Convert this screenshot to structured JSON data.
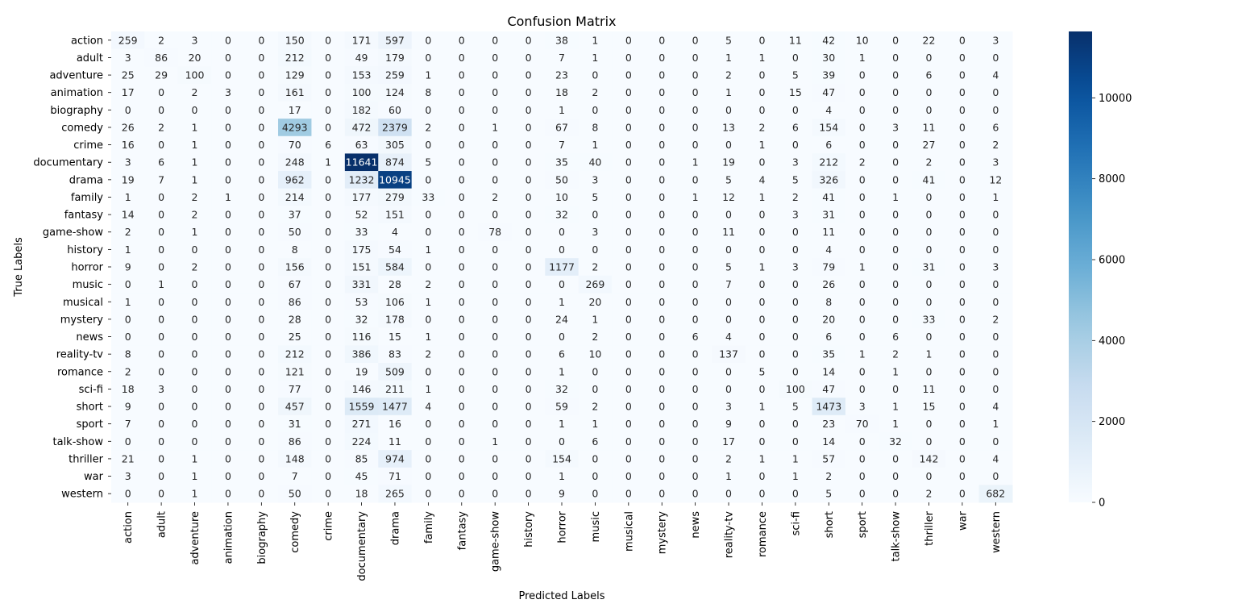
{
  "chart_data": {
    "type": "heatmap",
    "title": "Confusion Matrix",
    "xlabel": "Predicted Labels",
    "ylabel": "True Labels",
    "colormap": "Blues",
    "color_range": [
      0,
      11641
    ],
    "colorbar_ticks": [
      0,
      2000,
      4000,
      6000,
      8000,
      10000
    ],
    "labels": [
      "action",
      "adult",
      "adventure",
      "animation",
      "biography",
      "comedy",
      "crime",
      "documentary",
      "drama",
      "family",
      "fantasy",
      "game-show",
      "history",
      "horror",
      "music",
      "musical",
      "mystery",
      "news",
      "reality-tv",
      "romance",
      "sci-fi",
      "short",
      "sport",
      "talk-show",
      "thriller",
      "war",
      "western"
    ],
    "matrix": [
      [
        259,
        2,
        3,
        0,
        0,
        150,
        0,
        171,
        597,
        0,
        0,
        0,
        0,
        38,
        1,
        0,
        0,
        0,
        5,
        0,
        11,
        42,
        10,
        0,
        22,
        0,
        3
      ],
      [
        3,
        86,
        20,
        0,
        0,
        212,
        0,
        49,
        179,
        0,
        0,
        0,
        0,
        7,
        1,
        0,
        0,
        0,
        1,
        1,
        0,
        30,
        1,
        0,
        0,
        0,
        0
      ],
      [
        25,
        29,
        100,
        0,
        0,
        129,
        0,
        153,
        259,
        1,
        0,
        0,
        0,
        23,
        0,
        0,
        0,
        0,
        2,
        0,
        5,
        39,
        0,
        0,
        6,
        0,
        4
      ],
      [
        17,
        0,
        2,
        3,
        0,
        161,
        0,
        100,
        124,
        8,
        0,
        0,
        0,
        18,
        2,
        0,
        0,
        0,
        1,
        0,
        15,
        47,
        0,
        0,
        0,
        0,
        0
      ],
      [
        0,
        0,
        0,
        0,
        0,
        17,
        0,
        182,
        60,
        0,
        0,
        0,
        0,
        1,
        0,
        0,
        0,
        0,
        0,
        0,
        0,
        4,
        0,
        0,
        0,
        0,
        0
      ],
      [
        26,
        2,
        1,
        0,
        0,
        4293,
        0,
        472,
        2379,
        2,
        0,
        1,
        0,
        67,
        8,
        0,
        0,
        0,
        13,
        2,
        6,
        154,
        0,
        3,
        11,
        0,
        6
      ],
      [
        16,
        0,
        1,
        0,
        0,
        70,
        6,
        63,
        305,
        0,
        0,
        0,
        0,
        7,
        1,
        0,
        0,
        0,
        0,
        1,
        0,
        6,
        0,
        0,
        27,
        0,
        2
      ],
      [
        3,
        6,
        1,
        0,
        0,
        248,
        1,
        11641,
        874,
        5,
        0,
        0,
        0,
        35,
        40,
        0,
        0,
        1,
        19,
        0,
        3,
        212,
        2,
        0,
        2,
        0,
        3
      ],
      [
        19,
        7,
        1,
        0,
        0,
        962,
        0,
        1232,
        10945,
        0,
        0,
        0,
        0,
        50,
        3,
        0,
        0,
        0,
        5,
        4,
        5,
        326,
        0,
        0,
        41,
        0,
        12
      ],
      [
        1,
        0,
        2,
        1,
        0,
        214,
        0,
        177,
        279,
        33,
        0,
        2,
        0,
        10,
        5,
        0,
        0,
        1,
        12,
        1,
        2,
        41,
        0,
        1,
        0,
        0,
        1
      ],
      [
        14,
        0,
        2,
        0,
        0,
        37,
        0,
        52,
        151,
        0,
        0,
        0,
        0,
        32,
        0,
        0,
        0,
        0,
        0,
        0,
        3,
        31,
        0,
        0,
        0,
        0,
        0
      ],
      [
        2,
        0,
        1,
        0,
        0,
        50,
        0,
        33,
        4,
        0,
        0,
        78,
        0,
        0,
        3,
        0,
        0,
        0,
        11,
        0,
        0,
        11,
        0,
        0,
        0,
        0,
        0
      ],
      [
        1,
        0,
        0,
        0,
        0,
        8,
        0,
        175,
        54,
        1,
        0,
        0,
        0,
        0,
        0,
        0,
        0,
        0,
        0,
        0,
        0,
        4,
        0,
        0,
        0,
        0,
        0
      ],
      [
        9,
        0,
        2,
        0,
        0,
        156,
        0,
        151,
        584,
        0,
        0,
        0,
        0,
        1177,
        2,
        0,
        0,
        0,
        5,
        1,
        3,
        79,
        1,
        0,
        31,
        0,
        3
      ],
      [
        0,
        1,
        0,
        0,
        0,
        67,
        0,
        331,
        28,
        2,
        0,
        0,
        0,
        0,
        269,
        0,
        0,
        0,
        7,
        0,
        0,
        26,
        0,
        0,
        0,
        0,
        0
      ],
      [
        1,
        0,
        0,
        0,
        0,
        86,
        0,
        53,
        106,
        1,
        0,
        0,
        0,
        1,
        20,
        0,
        0,
        0,
        0,
        0,
        0,
        8,
        0,
        0,
        0,
        0,
        0
      ],
      [
        0,
        0,
        0,
        0,
        0,
        28,
        0,
        32,
        178,
        0,
        0,
        0,
        0,
        24,
        1,
        0,
        0,
        0,
        0,
        0,
        0,
        20,
        0,
        0,
        33,
        0,
        2
      ],
      [
        0,
        0,
        0,
        0,
        0,
        25,
        0,
        116,
        15,
        1,
        0,
        0,
        0,
        0,
        2,
        0,
        0,
        6,
        4,
        0,
        0,
        6,
        0,
        6,
        0,
        0,
        0
      ],
      [
        8,
        0,
        0,
        0,
        0,
        212,
        0,
        386,
        83,
        2,
        0,
        0,
        0,
        6,
        10,
        0,
        0,
        0,
        137,
        0,
        0,
        35,
        1,
        2,
        1,
        0,
        0
      ],
      [
        2,
        0,
        0,
        0,
        0,
        121,
        0,
        19,
        509,
        0,
        0,
        0,
        0,
        1,
        0,
        0,
        0,
        0,
        0,
        5,
        0,
        14,
        0,
        1,
        0,
        0,
        0
      ],
      [
        18,
        3,
        0,
        0,
        0,
        77,
        0,
        146,
        211,
        1,
        0,
        0,
        0,
        32,
        0,
        0,
        0,
        0,
        0,
        0,
        100,
        47,
        0,
        0,
        11,
        0,
        0
      ],
      [
        9,
        0,
        0,
        0,
        0,
        457,
        0,
        1559,
        1477,
        4,
        0,
        0,
        0,
        59,
        2,
        0,
        0,
        0,
        3,
        1,
        5,
        1473,
        3,
        1,
        15,
        0,
        4
      ],
      [
        7,
        0,
        0,
        0,
        0,
        31,
        0,
        271,
        16,
        0,
        0,
        0,
        0,
        1,
        1,
        0,
        0,
        0,
        9,
        0,
        0,
        23,
        70,
        1,
        0,
        0,
        1
      ],
      [
        0,
        0,
        0,
        0,
        0,
        86,
        0,
        224,
        11,
        0,
        0,
        1,
        0,
        0,
        6,
        0,
        0,
        0,
        17,
        0,
        0,
        14,
        0,
        32,
        0,
        0,
        0
      ],
      [
        21,
        0,
        1,
        0,
        0,
        148,
        0,
        85,
        974,
        0,
        0,
        0,
        0,
        154,
        0,
        0,
        0,
        0,
        2,
        1,
        1,
        57,
        0,
        0,
        142,
        0,
        4
      ],
      [
        3,
        0,
        1,
        0,
        0,
        7,
        0,
        45,
        71,
        0,
        0,
        0,
        0,
        1,
        0,
        0,
        0,
        0,
        1,
        0,
        1,
        2,
        0,
        0,
        0,
        0,
        0
      ],
      [
        0,
        0,
        1,
        0,
        0,
        50,
        0,
        18,
        265,
        0,
        0,
        0,
        0,
        9,
        0,
        0,
        0,
        0,
        0,
        0,
        0,
        5,
        0,
        0,
        2,
        0,
        682
      ]
    ]
  }
}
